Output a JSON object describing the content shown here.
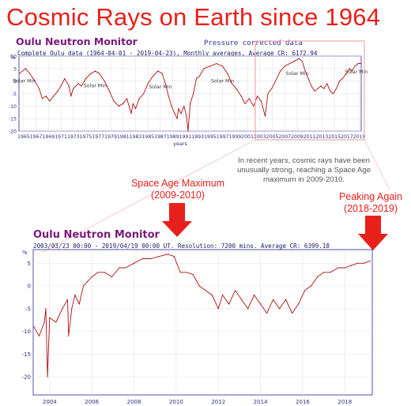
{
  "title": "Cosmic Rays on Earth since 1964",
  "top_chart": {
    "name": "Oulu Neutron Monitor",
    "pressure_note": "Pressure corrected data",
    "subtitle": "Complete Oulu data (1964-04-01 - 2019-04-23), Monthly averages, Average CR: 6172.94",
    "xlabel": "years",
    "ylabel": "%",
    "solar_min_label": "Solar Min"
  },
  "bottom_chart": {
    "name": "Oulu Neutron Monitor",
    "subtitle": "2003/03/23  00:00 - 2019/04/19  00:00 UT. Resolution: 7200 mins. Average CR: 6399.18",
    "ylabel": "%"
  },
  "annotation": "In recent years, cosmic rays have been unusually strong, reaching a Space Age maximum in 2009-2010.",
  "callouts": {
    "space_age_maximum": "Space Age Maximum",
    "space_age_maximum_years": "(2009-2010)",
    "peaking_again": "Peaking Again",
    "peaking_again_years": "(2018-2019)"
  },
  "colors": {
    "title": "#e8201c",
    "data_line": "#b01010",
    "arrow": "#e8201c",
    "panel_title": "#7a1a7a",
    "axis": "#3030a0"
  },
  "chart_data": [
    {
      "type": "line",
      "title": "Oulu Neutron Monitor",
      "xlabel": "years",
      "ylabel": "%",
      "xlim": [
        1964.25,
        2019.3
      ],
      "ylim": [
        -20,
        10
      ],
      "x_ticks": [
        1965,
        1967,
        1969,
        1971,
        1973,
        1975,
        1977,
        1979,
        1981,
        1983,
        1985,
        1987,
        1989,
        1991,
        1993,
        1995,
        1997,
        1999,
        2001,
        2003,
        2005,
        2007,
        2009,
        2011,
        2013,
        2015,
        2017,
        2019
      ],
      "y_ticks": [
        10,
        5,
        0,
        -5,
        -10,
        -15,
        -20
      ],
      "grid": true,
      "annotations": [
        {
          "text": "Solar Min",
          "x": 1965.1,
          "y": -0.5
        },
        {
          "text": "Solar Min",
          "x": 1976.5,
          "y": -2.5
        },
        {
          "text": "Solar Min",
          "x": 1987.0,
          "y": -3.0
        },
        {
          "text": "Solar Min",
          "x": 1997.0,
          "y": -0.5
        },
        {
          "text": "Solar Min",
          "x": 2009.0,
          "y": 2.5
        },
        {
          "text": "Solar Min",
          "x": 2018.5,
          "y": 3.0
        }
      ],
      "series": [
        {
          "x": [
            1964.3,
            1965.3,
            1966.0,
            1966.8,
            1967.5,
            1968.0,
            1968.6,
            1969.2,
            1969.8,
            1970.5,
            1971.0,
            1971.6,
            1972.3,
            1972.6,
            1973.0,
            1973.8,
            1974.3,
            1975.0,
            1975.8,
            1976.5,
            1977.2,
            1978.0,
            1978.8,
            1979.5,
            1980.3,
            1981.0,
            1981.6,
            1982.3,
            1982.6,
            1983.0,
            1983.6,
            1984.3,
            1985.0,
            1985.8,
            1986.6,
            1987.3,
            1987.8,
            1988.3,
            1988.8,
            1989.3,
            1989.7,
            1989.9,
            1990.3,
            1990.8,
            1991.2,
            1991.45,
            1991.8,
            1992.3,
            1992.8,
            1993.3,
            1994.0,
            1995.0,
            1996.0,
            1997.0,
            1997.8,
            1998.5,
            1999.2,
            2000.0,
            2000.6,
            2001.3,
            2002.0,
            2002.6,
            2003.2,
            2003.85,
            2004.3,
            2004.9,
            2005.5,
            2006.3,
            2007.0,
            2007.8,
            2008.6,
            2009.3,
            2009.8,
            2010.3,
            2010.8,
            2011.3,
            2011.8,
            2012.3,
            2012.8,
            2013.3,
            2013.8,
            2014.3,
            2014.8,
            2015.3,
            2015.8,
            2016.3,
            2016.9,
            2017.4,
            2017.8,
            2018.3,
            2018.8,
            2019.2
          ],
          "y": [
            3,
            5,
            3,
            0,
            -3,
            -7,
            -6,
            -8,
            -6,
            -4,
            -2,
            1,
            -2,
            -6,
            -3,
            -1,
            -2,
            1,
            3,
            4,
            3,
            0,
            -4,
            -8,
            -10,
            -9,
            -7,
            -13,
            -9,
            -11,
            -7,
            -5,
            -1,
            2,
            4,
            3,
            -1,
            -6,
            -10,
            -13,
            -15,
            -11,
            -13,
            -10,
            -14,
            -20,
            -9,
            -5,
            1,
            2,
            5,
            6,
            7,
            6,
            3,
            -1,
            -3,
            -6,
            -9,
            -7,
            -10,
            -6,
            -8,
            -14,
            -5,
            -3,
            0,
            4,
            6,
            7,
            8,
            9,
            8,
            4,
            1,
            -2,
            -4,
            -3,
            -2,
            -3,
            -1,
            -4,
            -5,
            -3,
            0,
            1,
            3,
            5,
            4,
            6,
            7,
            7
          ]
        }
      ]
    },
    {
      "type": "line",
      "title": "Oulu Neutron Monitor",
      "ylabel": "%",
      "xlim": [
        2003.22,
        2019.3
      ],
      "ylim": [
        -24,
        8
      ],
      "x_ticks": [
        2004,
        2006,
        2008,
        2010,
        2012,
        2014,
        2016,
        2018
      ],
      "y_ticks": [
        5,
        0,
        -5,
        -10,
        -15,
        -20
      ],
      "grid": true,
      "series": [
        {
          "x": [
            2003.25,
            2003.5,
            2003.75,
            2003.82,
            2003.9,
            2004.0,
            2004.3,
            2004.6,
            2004.85,
            2004.9,
            2005.05,
            2005.2,
            2005.4,
            2005.6,
            2005.8,
            2006.0,
            2006.3,
            2006.6,
            2006.95,
            2007.3,
            2007.6,
            2008.0,
            2008.4,
            2008.8,
            2009.2,
            2009.6,
            2009.9,
            2010.2,
            2010.5,
            2010.8,
            2011.1,
            2011.4,
            2011.7,
            2012.0,
            2012.2,
            2012.5,
            2012.8,
            2013.1,
            2013.4,
            2013.7,
            2014.0,
            2014.3,
            2014.6,
            2014.9,
            2015.2,
            2015.5,
            2015.8,
            2016.1,
            2016.4,
            2016.7,
            2017.0,
            2017.3,
            2017.7,
            2018.0,
            2018.3,
            2018.6,
            2018.9,
            2019.2
          ],
          "y": [
            -9,
            -11,
            -8,
            -5,
            -20,
            -7,
            -8,
            -5,
            -3,
            -11,
            -5,
            -2,
            -4,
            0,
            1,
            2,
            3,
            3,
            2,
            4,
            4,
            5,
            6,
            6,
            6.5,
            7,
            6.5,
            3,
            3,
            2.5,
            0,
            -1,
            -2,
            -5,
            -2,
            -4,
            -1,
            -3,
            -5,
            -2,
            -4,
            -6,
            -3,
            -5,
            -3,
            -6,
            -4,
            -1,
            0,
            2,
            3,
            3,
            4,
            4,
            4.5,
            5,
            5,
            5.5
          ]
        }
      ]
    }
  ]
}
